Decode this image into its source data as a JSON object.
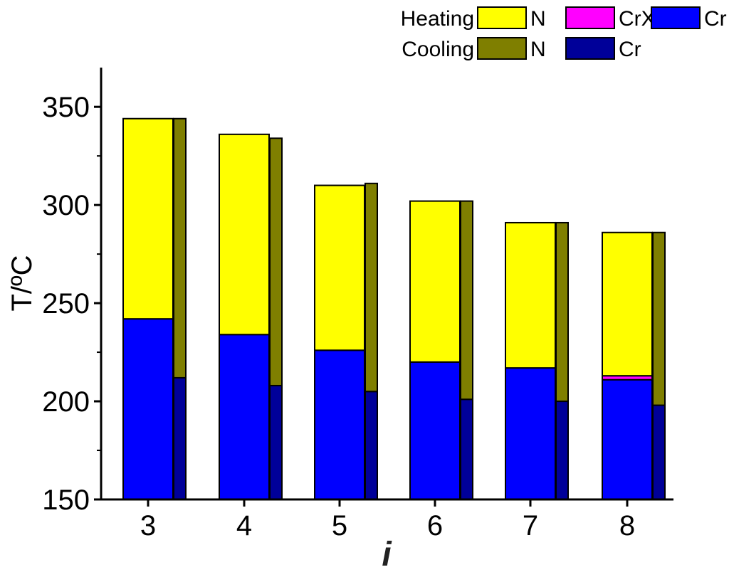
{
  "chart_data": {
    "type": "bar",
    "categories": [
      "3",
      "4",
      "5",
      "6",
      "7",
      "8"
    ],
    "xlabel": "i",
    "ylabel": "T/ºC",
    "ylim": [
      150,
      370
    ],
    "yticks": [
      "150",
      "200",
      "250",
      "300",
      "350"
    ],
    "grid": false,
    "legend_position": "top-right",
    "series_groups": [
      {
        "group": "Heating",
        "phases": [
          {
            "name": "Cr",
            "color": "#0000ff",
            "from": [
              150,
              150,
              150,
              150,
              150,
              150
            ],
            "to": [
              242,
              234,
              226,
              220,
              217,
              211
            ]
          },
          {
            "name": "CrX",
            "color": "#ff00ff",
            "from": [
              242,
              234,
              226,
              220,
              217,
              211
            ],
            "to": [
              242,
              234,
              226,
              220,
              217,
              213
            ]
          },
          {
            "name": "N",
            "color": "#ffff00",
            "from": [
              242,
              234,
              226,
              220,
              217,
              213
            ],
            "to": [
              344,
              336,
              310,
              302,
              291,
              286
            ]
          }
        ]
      },
      {
        "group": "Cooling",
        "phases": [
          {
            "name": "Cr",
            "color": "#000099",
            "from": [
              150,
              150,
              150,
              150,
              150,
              150
            ],
            "to": [
              212,
              208,
              205,
              201,
              200,
              198
            ]
          },
          {
            "name": "N",
            "color": "#7f7f00",
            "from": [
              212,
              208,
              205,
              201,
              200,
              198
            ],
            "to": [
              344,
              334,
              311,
              302,
              291,
              286
            ]
          }
        ]
      }
    ]
  },
  "legend": {
    "heating_label": "Heating",
    "cooling_label": "Cooling",
    "items": [
      {
        "row": 0,
        "label": "N",
        "color": "#ffff00"
      },
      {
        "row": 0,
        "label": "CrX",
        "color": "#ff00ff"
      },
      {
        "row": 0,
        "label": "Cr",
        "color": "#0000ff"
      },
      {
        "row": 1,
        "label": "N",
        "color": "#7f7f00"
      },
      {
        "row": 1,
        "label": "Cr",
        "color": "#000099"
      }
    ]
  }
}
